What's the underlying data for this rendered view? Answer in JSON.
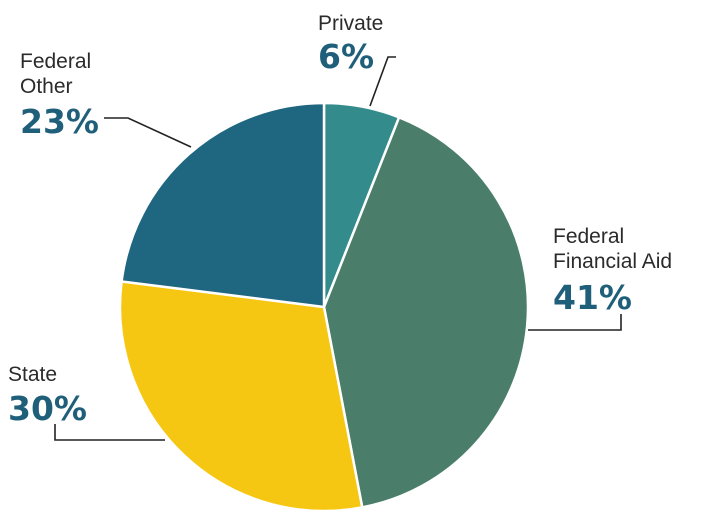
{
  "chart_data": {
    "type": "pie",
    "title": "",
    "slices": [
      {
        "label_lines": [
          "Private"
        ],
        "value": 6,
        "value_label": "6%",
        "color": "#338b8b"
      },
      {
        "label_lines": [
          "Federal",
          "Financial Aid"
        ],
        "value": 41,
        "value_label": "41%",
        "color": "#4b7e6a"
      },
      {
        "label_lines": [
          "State"
        ],
        "value": 30,
        "value_label": "30%",
        "color": "#f6c712"
      },
      {
        "label_lines": [
          "Federal",
          "Other"
        ],
        "value": 23,
        "value_label": "23%",
        "color": "#1f6680"
      }
    ],
    "start_angle_deg": 0,
    "direction": "clockwise"
  }
}
